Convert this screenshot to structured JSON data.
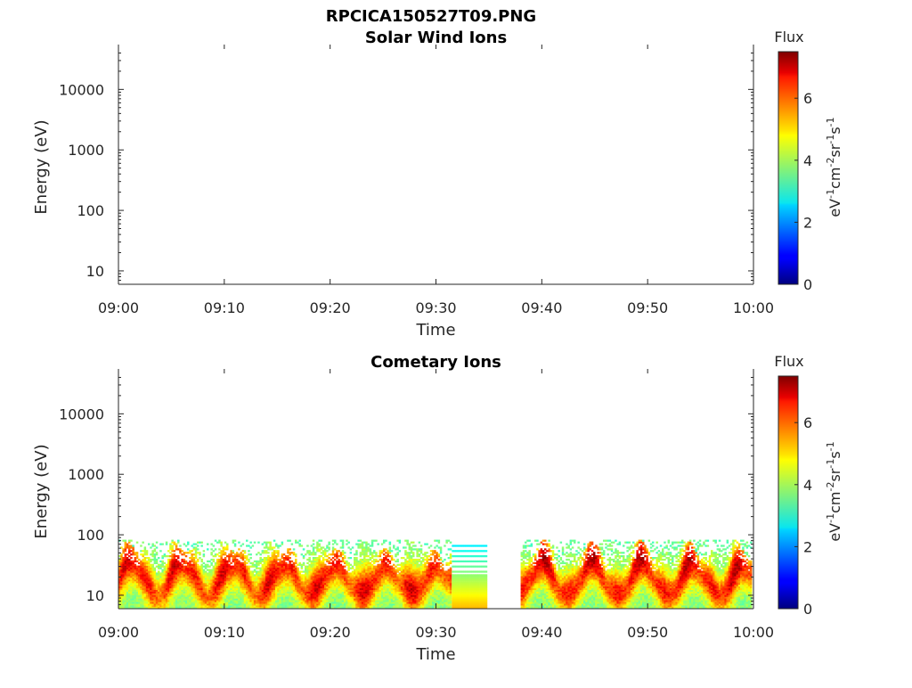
{
  "figure": {
    "title": "RPCICA150527T09.PNG"
  },
  "colormap": "jet",
  "chart_data": [
    {
      "type": "heatmap",
      "title": "Solar Wind Ions",
      "xlabel": "Time",
      "ylabel": "Energy (eV)",
      "x_ticks": [
        "09:00",
        "09:10",
        "09:20",
        "09:30",
        "09:40",
        "09:50",
        "10:00"
      ],
      "xlim": [
        "09:00",
        "10:00"
      ],
      "y_scale": "log",
      "y_ticks": [
        10,
        100,
        1000,
        10000
      ],
      "y_tick_labels": [
        "10",
        "100",
        "1000",
        "10000"
      ],
      "ylim": [
        6,
        45000
      ],
      "grid": false,
      "colorbar": {
        "label": "Flux",
        "units_label": "eV-1cm-2sr-1s-1",
        "ticks": [
          0,
          2,
          4,
          6
        ],
        "tick_labels": [
          "0",
          "2",
          "4",
          "6"
        ],
        "range": [
          0,
          7.5
        ]
      },
      "data_segments": []
    },
    {
      "type": "heatmap",
      "title": "Cometary Ions",
      "xlabel": "Time",
      "ylabel": "Energy (eV)",
      "x_ticks": [
        "09:00",
        "09:10",
        "09:20",
        "09:30",
        "09:40",
        "09:50",
        "10:00"
      ],
      "xlim": [
        "09:00",
        "10:00"
      ],
      "y_scale": "log",
      "y_ticks": [
        10,
        100,
        1000,
        10000
      ],
      "y_tick_labels": [
        "10",
        "100",
        "1000",
        "10000"
      ],
      "ylim": [
        6,
        45000
      ],
      "grid": false,
      "colorbar": {
        "label": "Flux",
        "units_label": "eV-1cm-2sr-1s-1",
        "ticks": [
          0,
          2,
          4,
          6
        ],
        "tick_labels": [
          "0",
          "2",
          "4",
          "6"
        ],
        "range": [
          0,
          7.5
        ]
      },
      "data_segments": [
        {
          "start": "09:00",
          "end": "09:31.5",
          "energy_range": [
            6,
            80
          ],
          "peak_flux": 7.0,
          "pattern": "variable bursts"
        },
        {
          "start": "09:31.5",
          "end": "09:35",
          "energy_range": [
            6,
            65
          ],
          "peak_flux": 5.2,
          "pattern": "constant bands"
        },
        {
          "start": "09:38",
          "end": "10:00",
          "energy_range": [
            6,
            80
          ],
          "peak_flux": 7.2,
          "pattern": "variable bursts"
        }
      ]
    }
  ]
}
